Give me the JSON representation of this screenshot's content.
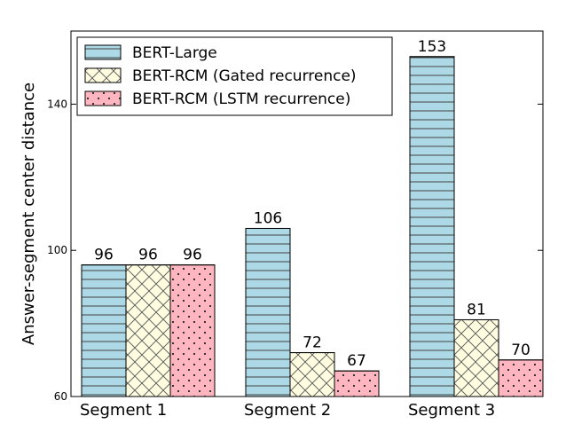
{
  "chart_data": {
    "type": "bar",
    "categories": [
      "Segment 1",
      "Segment 2",
      "Segment 3"
    ],
    "series": [
      {
        "name": "BERT-Large",
        "values": [
          96,
          106,
          153
        ],
        "color": "#add8e6",
        "hatch": "horizontal-lines"
      },
      {
        "name": "BERT-RCM (Gated recurrence)",
        "values": [
          96,
          72,
          81
        ],
        "color": "#fffce0",
        "hatch": "cross-hatch"
      },
      {
        "name": "BERT-RCM (LSTM recurrence)",
        "values": [
          96,
          67,
          70
        ],
        "color": "#ffb6c1",
        "hatch": "dots"
      }
    ],
    "ylabel": "Answer-segment center distance",
    "xlabel": "",
    "ylim": [
      60,
      160
    ],
    "yticks": [
      60,
      100,
      140
    ],
    "grid": false,
    "legend_position": "top-left",
    "data_labels": [
      [
        "96",
        "106",
        "153"
      ],
      [
        "96",
        "72",
        "81"
      ],
      [
        "96",
        "67",
        "70"
      ]
    ]
  }
}
